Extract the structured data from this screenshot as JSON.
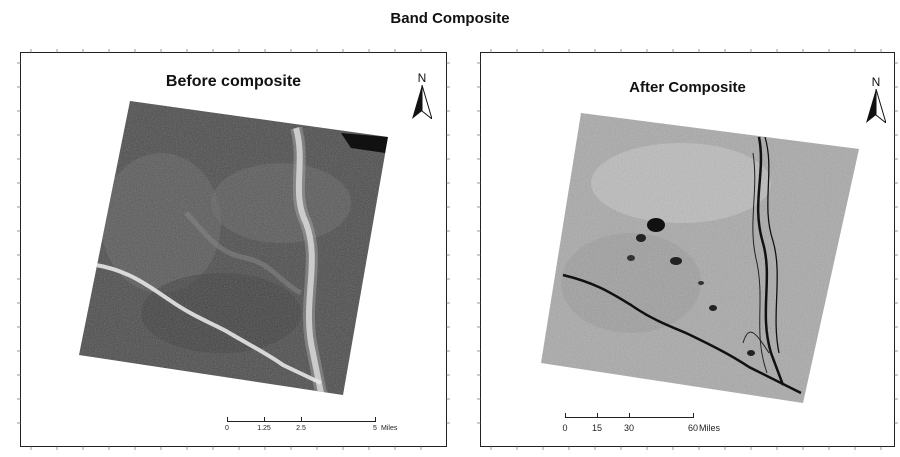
{
  "title": "Band Composite",
  "panels": [
    {
      "title": "Before composite",
      "north_label": "N",
      "scale": {
        "ticks": [
          "0",
          "1.25",
          "2.5",
          "5"
        ],
        "unit": "Miles"
      }
    },
    {
      "title": "After Composite",
      "north_label": "N",
      "scale": {
        "ticks": [
          "0",
          "15",
          "30",
          "60"
        ],
        "unit": "Miles"
      }
    }
  ],
  "colors": {
    "frame": "#222222",
    "raster_before": "#4a4a4a",
    "raster_after": "#a8a8a8",
    "river_before": "#e8e8e8",
    "river_after": "#111111"
  }
}
